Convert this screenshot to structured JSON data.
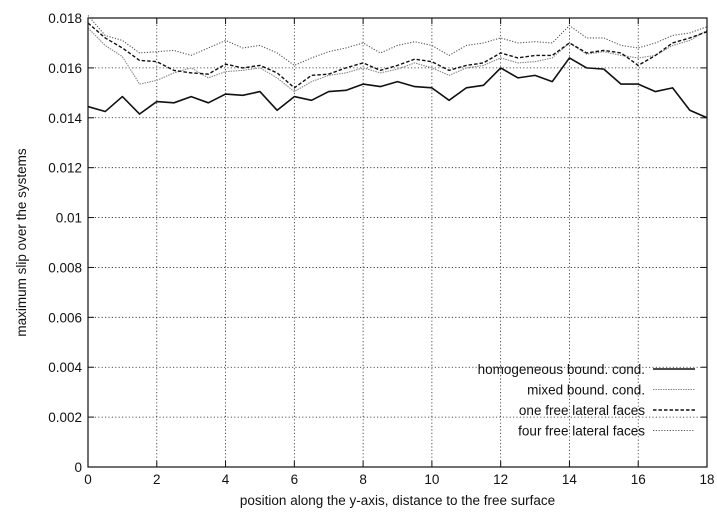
{
  "chart_data": {
    "type": "line",
    "title": "",
    "xlabel": "position along the y-axis, distance to the free surface",
    "ylabel": "maximum slip over the systems",
    "xlim": [
      0,
      18
    ],
    "ylim": [
      0,
      0.018
    ],
    "x_ticks": [
      "0",
      "2",
      "4",
      "6",
      "8",
      "10",
      "12",
      "14",
      "16",
      "18"
    ],
    "y_ticks": [
      "0",
      "0.002",
      "0.004",
      "0.006",
      "0.008",
      "0.01",
      "0.012",
      "0.014",
      "0.016",
      "0.018"
    ],
    "grid": true,
    "legend_position": "bottom-right",
    "x": [
      0,
      0.5,
      1,
      1.5,
      2,
      2.5,
      3,
      3.5,
      4,
      4.5,
      5,
      5.5,
      6,
      6.5,
      7,
      7.5,
      8,
      8.5,
      9,
      9.5,
      10,
      10.5,
      11,
      11.5,
      12,
      12.5,
      13,
      13.5,
      14,
      14.5,
      15,
      15.5,
      16,
      16.5,
      17,
      17.5,
      18
    ],
    "series": [
      {
        "name": "homogeneous bound. cond.",
        "color": "#111111",
        "dash": "solid",
        "values": [
          0.01445,
          0.01425,
          0.01485,
          0.01415,
          0.01465,
          0.0146,
          0.01485,
          0.0146,
          0.01495,
          0.0149,
          0.01505,
          0.0143,
          0.01485,
          0.0147,
          0.01505,
          0.0151,
          0.01535,
          0.01525,
          0.01545,
          0.01525,
          0.0152,
          0.0147,
          0.0152,
          0.0153,
          0.016,
          0.0156,
          0.0157,
          0.01545,
          0.0164,
          0.016,
          0.01595,
          0.01535,
          0.01535,
          0.01505,
          0.0152,
          0.0143,
          0.014
        ]
      },
      {
        "name": "mixed bound. cond.",
        "color": "#888888",
        "dash": "fine",
        "values": [
          0.0176,
          0.0169,
          0.01645,
          0.01535,
          0.0155,
          0.0158,
          0.016,
          0.0156,
          0.01585,
          0.0159,
          0.016,
          0.0156,
          0.01505,
          0.01545,
          0.0157,
          0.0158,
          0.016,
          0.0158,
          0.01595,
          0.0162,
          0.016,
          0.0157,
          0.016,
          0.0161,
          0.0164,
          0.0162,
          0.01625,
          0.0164,
          0.017,
          0.01655,
          0.01665,
          0.0165,
          0.0164,
          0.0165,
          0.0169,
          0.0171,
          0.0175
        ]
      },
      {
        "name": "one free lateral faces",
        "color": "#111111",
        "dash": "dashed",
        "values": [
          0.0178,
          0.0172,
          0.0168,
          0.0163,
          0.01625,
          0.0159,
          0.0158,
          0.01575,
          0.01615,
          0.016,
          0.0161,
          0.0158,
          0.0152,
          0.0157,
          0.01575,
          0.016,
          0.0162,
          0.0159,
          0.0161,
          0.01635,
          0.01625,
          0.0159,
          0.0161,
          0.0162,
          0.0166,
          0.0164,
          0.0165,
          0.0165,
          0.017,
          0.0166,
          0.0167,
          0.0166,
          0.0161,
          0.0165,
          0.017,
          0.0172,
          0.01745
        ]
      },
      {
        "name": "four free lateral faces",
        "color": "#555555",
        "dash": "dotted",
        "values": [
          0.0181,
          0.0173,
          0.0171,
          0.0166,
          0.01665,
          0.0167,
          0.0165,
          0.0168,
          0.0171,
          0.0168,
          0.0169,
          0.0166,
          0.0161,
          0.0164,
          0.01665,
          0.0168,
          0.017,
          0.0166,
          0.0169,
          0.01705,
          0.0169,
          0.0165,
          0.0169,
          0.017,
          0.0172,
          0.017,
          0.01705,
          0.017,
          0.0177,
          0.0172,
          0.0172,
          0.0169,
          0.0168,
          0.017,
          0.0173,
          0.0174,
          0.01765
        ]
      }
    ]
  }
}
